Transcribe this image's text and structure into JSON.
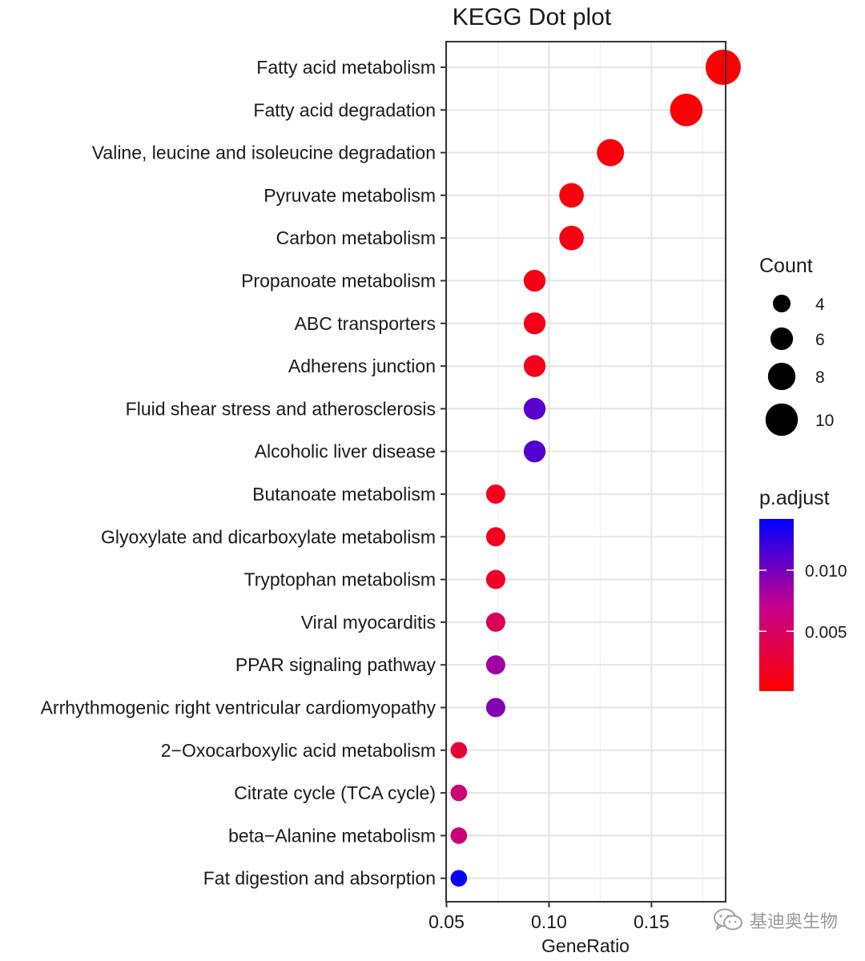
{
  "chart_data": {
    "type": "scatter",
    "title": "KEGG Dot plot",
    "xlabel": "GeneRatio",
    "ylabel": "",
    "xlim": [
      0.0498,
      0.1862
    ],
    "x_ticks": [
      0.05,
      0.1,
      0.15
    ],
    "x_tick_labels": [
      "0.05",
      "0.10",
      "0.15"
    ],
    "grid": true,
    "categories": [
      "Fatty acid metabolism",
      "Fatty acid degradation",
      "Valine, leucine and isoleucine degradation",
      "Pyruvate metabolism",
      "Carbon metabolism",
      "Propanoate metabolism",
      "ABC transporters",
      "Adherens junction",
      "Fluid shear stress and atherosclerosis",
      "Alcoholic liver disease",
      "Butanoate metabolism",
      "Glyoxylate and dicarboxylate metabolism",
      "Tryptophan metabolism",
      "Viral myocarditis",
      "PPAR signaling pathway",
      "Arrhythmogenic right ventricular cardiomyopathy",
      "2−Oxocarboxylic acid metabolism",
      "Citrate cycle (TCA cycle)",
      "beta−Alanine metabolism",
      "Fat digestion and absorption"
    ],
    "gene_ratio": [
      0.185,
      0.167,
      0.13,
      0.111,
      0.111,
      0.093,
      0.093,
      0.093,
      0.093,
      0.093,
      0.074,
      0.074,
      0.074,
      0.074,
      0.074,
      0.074,
      0.056,
      0.056,
      0.056,
      0.056
    ],
    "count": [
      10,
      9,
      7,
      6,
      6,
      5,
      5,
      5,
      5,
      5,
      4,
      4,
      4,
      4,
      4,
      4,
      3,
      3,
      3,
      3
    ],
    "p_adjust": [
      0.0003,
      0.0004,
      0.0006,
      0.0008,
      0.001,
      0.0012,
      0.0013,
      0.0014,
      0.011,
      0.0112,
      0.0015,
      0.0016,
      0.002,
      0.0045,
      0.0085,
      0.0095,
      0.003,
      0.006,
      0.006,
      0.014
    ],
    "legend_size": {
      "title": "Count",
      "values": [
        4,
        6,
        8,
        10
      ],
      "labels": [
        "4",
        "6",
        "8",
        "10"
      ]
    },
    "legend_color": {
      "title": "p.adjust",
      "range": [
        0.0001,
        0.0142
      ],
      "ticks": [
        0.005,
        0.01
      ],
      "tick_labels": [
        "0.005",
        "0.010"
      ],
      "low_color": "#ff0000",
      "mid_color": "#c4008e",
      "high_color": "#0000ff"
    },
    "legend_placement": "right"
  },
  "watermark": {
    "text": "基迪奥生物",
    "icon": "wechat-icon"
  }
}
